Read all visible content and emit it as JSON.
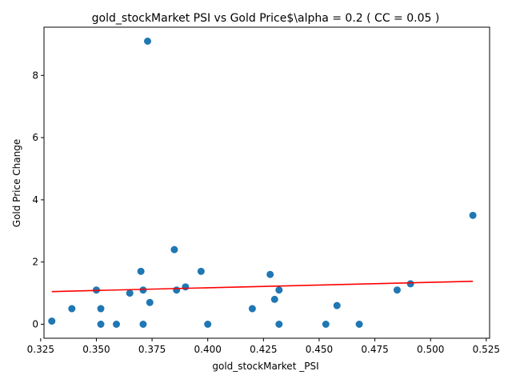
{
  "chart_data": {
    "type": "scatter",
    "title": "gold_stockMarket  PSI vs Gold Price$\\alpha = 0.2 ( CC = 0.05 )",
    "xlabel": "gold_stockMarket _PSI",
    "ylabel": "Gold Price Change",
    "xlim": [
      0.3265,
      0.5265
    ],
    "ylim": [
      -0.45,
      9.55
    ],
    "xticks": [
      0.325,
      0.35,
      0.375,
      0.4,
      0.425,
      0.45,
      0.475,
      0.5,
      0.525
    ],
    "xtick_labels": [
      "0.325",
      "0.350",
      "0.375",
      "0.400",
      "0.425",
      "0.450",
      "0.475",
      "0.500",
      "0.525"
    ],
    "yticks": [
      0,
      2,
      4,
      6,
      8
    ],
    "ytick_labels": [
      "0",
      "2",
      "4",
      "6",
      "8"
    ],
    "grid": false,
    "points": [
      {
        "x": 0.33,
        "y": 0.1
      },
      {
        "x": 0.339,
        "y": 0.5
      },
      {
        "x": 0.35,
        "y": 1.1
      },
      {
        "x": 0.352,
        "y": 0.5
      },
      {
        "x": 0.352,
        "y": 0.0
      },
      {
        "x": 0.359,
        "y": 0.0
      },
      {
        "x": 0.365,
        "y": 1.0
      },
      {
        "x": 0.37,
        "y": 1.7
      },
      {
        "x": 0.371,
        "y": 1.1
      },
      {
        "x": 0.371,
        "y": 0.0
      },
      {
        "x": 0.373,
        "y": 9.1
      },
      {
        "x": 0.374,
        "y": 0.7
      },
      {
        "x": 0.385,
        "y": 2.4
      },
      {
        "x": 0.386,
        "y": 1.1
      },
      {
        "x": 0.39,
        "y": 1.2
      },
      {
        "x": 0.397,
        "y": 1.7
      },
      {
        "x": 0.4,
        "y": 0.0
      },
      {
        "x": 0.42,
        "y": 0.5
      },
      {
        "x": 0.428,
        "y": 1.6
      },
      {
        "x": 0.43,
        "y": 0.8
      },
      {
        "x": 0.432,
        "y": 1.1
      },
      {
        "x": 0.432,
        "y": 0.0
      },
      {
        "x": 0.453,
        "y": 0.0
      },
      {
        "x": 0.458,
        "y": 0.6
      },
      {
        "x": 0.468,
        "y": 0.0
      },
      {
        "x": 0.485,
        "y": 1.1
      },
      {
        "x": 0.491,
        "y": 1.3
      },
      {
        "x": 0.519,
        "y": 3.5
      }
    ],
    "fit_line": {
      "x": [
        0.33,
        0.519
      ],
      "y": [
        1.05,
        1.38
      ]
    },
    "colors": {
      "points": "#1f77b4",
      "fit_line": "#ff0000",
      "axes": "#000000"
    }
  }
}
